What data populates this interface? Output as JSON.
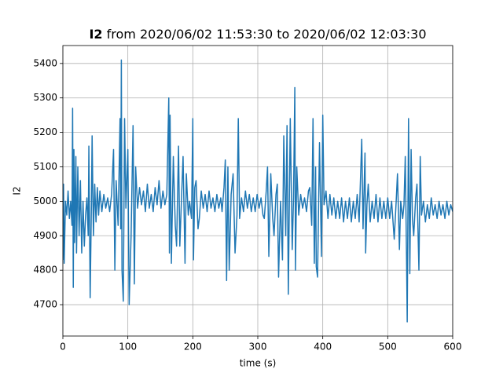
{
  "chart_data": {
    "type": "line",
    "title": {
      "bold": "I2",
      "rest": "from 2020/06/02 11:53:30 to 2020/06/02 12:03:30"
    },
    "xlabel": "time (s)",
    "ylabel": "I2",
    "x": [
      0,
      1,
      2,
      4,
      6,
      8,
      10,
      12,
      14,
      15,
      16,
      17,
      18,
      20,
      21,
      23,
      25,
      27,
      29,
      31,
      33,
      35,
      37,
      39,
      40,
      42,
      44,
      45,
      47,
      49,
      51,
      53,
      55,
      57,
      60,
      63,
      66,
      69,
      72,
      75,
      78,
      80,
      82,
      85,
      88,
      89,
      90,
      91,
      93,
      95,
      97,
      100,
      102,
      105,
      108,
      110,
      112,
      115,
      118,
      121,
      124,
      127,
      130,
      133,
      136,
      139,
      142,
      145,
      148,
      151,
      154,
      157,
      160,
      163,
      164,
      165,
      167,
      170,
      173,
      175,
      178,
      180,
      183,
      185,
      188,
      190,
      193,
      195,
      198,
      200,
      201,
      203,
      205,
      208,
      210,
      213,
      216,
      219,
      222,
      225,
      228,
      231,
      234,
      237,
      240,
      243,
      245,
      248,
      250,
      252,
      254,
      256,
      259,
      262,
      265,
      268,
      270,
      272,
      275,
      278,
      281,
      284,
      287,
      290,
      293,
      296,
      299,
      302,
      305,
      308,
      310,
      313,
      315,
      317,
      320,
      323,
      325,
      328,
      330,
      332,
      335,
      338,
      340,
      343,
      345,
      347,
      350,
      353,
      355,
      357,
      358,
      360,
      363,
      366,
      369,
      372,
      375,
      378,
      380,
      383,
      385,
      387,
      389,
      390,
      392,
      395,
      398,
      400,
      402,
      405,
      408,
      411,
      414,
      417,
      420,
      423,
      426,
      429,
      432,
      435,
      438,
      441,
      444,
      447,
      450,
      453,
      456,
      458,
      460,
      462,
      465,
      466,
      468,
      470,
      473,
      476,
      479,
      482,
      485,
      488,
      491,
      494,
      497,
      500,
      503,
      506,
      510,
      513,
      515,
      518,
      520,
      523,
      525,
      527,
      529,
      530,
      532,
      534,
      536,
      538,
      540,
      543,
      545,
      548,
      550,
      552,
      555,
      558,
      561,
      564,
      567,
      570,
      573,
      576,
      579,
      582,
      585,
      588,
      591,
      594,
      597,
      600
    ],
    "series": [
      {
        "name": "I2",
        "color": "#1f77b4",
        "values": [
          4830,
          5050,
          4820,
          5000,
          4960,
          5030,
          4950,
          5000,
          4930,
          5270,
          4750,
          5150,
          4880,
          5130,
          4850,
          5100,
          4900,
          5060,
          4850,
          5000,
          4870,
          4960,
          5010,
          4900,
          5160,
          4720,
          5000,
          5190,
          4900,
          5050,
          4940,
          5040,
          4960,
          5030,
          4970,
          5020,
          4980,
          5010,
          4970,
          5020,
          5150,
          4800,
          5060,
          4930,
          5240,
          4920,
          5410,
          4800,
          4710,
          5240,
          4980,
          5150,
          4700,
          4900,
          5220,
          4760,
          5100,
          4980,
          5040,
          4990,
          5030,
          4970,
          5050,
          4980,
          5020,
          4970,
          5040,
          4990,
          5060,
          4980,
          5030,
          4990,
          5020,
          5300,
          4850,
          5250,
          4820,
          5130,
          4930,
          4870,
          5160,
          4870,
          5030,
          5130,
          4820,
          5080,
          4960,
          5000,
          4950,
          5240,
          4830,
          5040,
          5060,
          4920,
          4950,
          5030,
          4980,
          5020,
          4970,
          5030,
          4980,
          5010,
          4970,
          5020,
          4980,
          5010,
          4970,
          5040,
          5120,
          4770,
          5100,
          4800,
          5020,
          5080,
          4850,
          4960,
          5240,
          4950,
          5010,
          4970,
          5030,
          4980,
          5020,
          4970,
          5010,
          4970,
          5020,
          4980,
          5010,
          4960,
          4950,
          5030,
          5100,
          4840,
          5080,
          4950,
          4900,
          5020,
          5050,
          4780,
          5000,
          4830,
          5190,
          4900,
          5220,
          4730,
          5240,
          4860,
          5010,
          5330,
          4800,
          5100,
          4960,
          5020,
          4980,
          5010,
          4970,
          5030,
          5040,
          4930,
          5240,
          4820,
          5100,
          4810,
          4780,
          5170,
          4840,
          5250,
          4990,
          5030,
          4950,
          5020,
          4960,
          5010,
          4950,
          5000,
          4950,
          5010,
          4940,
          5000,
          4950,
          5010,
          4940,
          5000,
          4950,
          5020,
          4940,
          5060,
          5180,
          4920,
          5140,
          4850,
          4990,
          5050,
          4940,
          5000,
          4950,
          5020,
          4940,
          5010,
          4950,
          5000,
          4950,
          5010,
          4950,
          5000,
          4890,
          5000,
          5080,
          4860,
          5000,
          4950,
          4990,
          5130,
          4830,
          4650,
          5240,
          4790,
          5150,
          4950,
          4900,
          5010,
          5050,
          4800,
          5130,
          4960,
          5000,
          4940,
          4990,
          4950,
          5010,
          4960,
          4990,
          4950,
          5000,
          4960,
          4990,
          4950,
          5000,
          4960,
          4990,
          4970
        ]
      }
    ],
    "xlim": [
      0,
      600
    ],
    "xticks": [
      0,
      100,
      200,
      300,
      400,
      500,
      600
    ],
    "ylim": [
      4609,
      5452
    ],
    "yticks": [
      4700,
      4800,
      4900,
      5000,
      5100,
      5200,
      5300,
      5400
    ],
    "grid": true
  }
}
